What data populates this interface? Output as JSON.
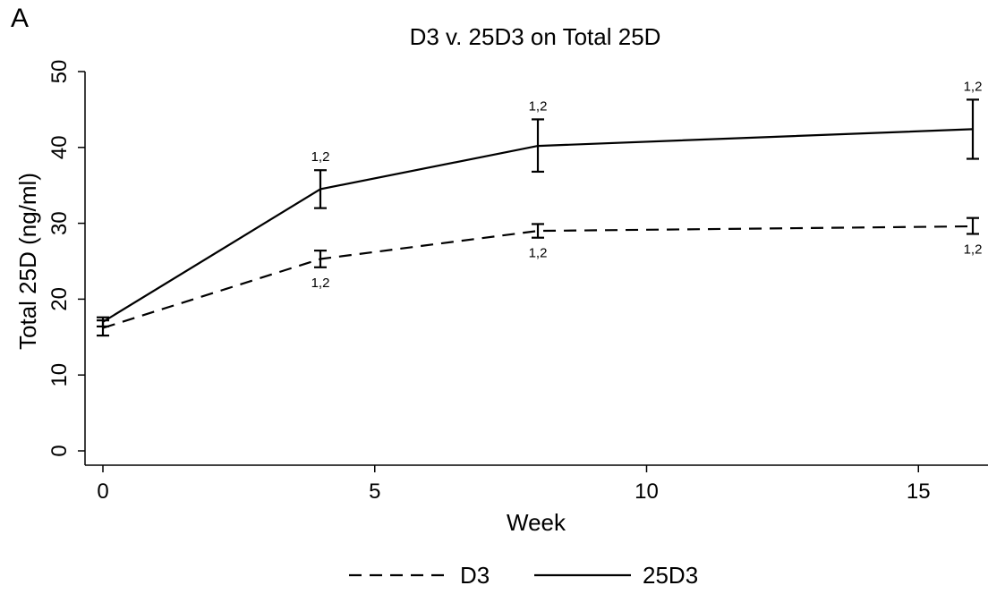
{
  "panel_letter": "A",
  "chart_data": {
    "type": "line",
    "title": "D3 v. 25D3 on Total 25D",
    "xlabel": "Week",
    "ylabel": "Total 25D (ng/ml)",
    "xlim": [
      0,
      16
    ],
    "ylim": [
      0,
      50
    ],
    "x_ticks": [
      0,
      5,
      10,
      15
    ],
    "y_ticks": [
      0,
      10,
      20,
      30,
      40,
      50
    ],
    "x_tick_labels": [
      "0",
      "5",
      "10",
      "15"
    ],
    "y_tick_labels": [
      "0",
      "10",
      "20",
      "30",
      "40",
      "50"
    ],
    "grid": false,
    "legend_position": "bottom",
    "series": [
      {
        "name": "D3",
        "style": "dashed",
        "points": [
          {
            "x": 0,
            "y": 16.2,
            "lo": 15.2,
            "hi": 17.2,
            "label": ""
          },
          {
            "x": 4,
            "y": 25.3,
            "lo": 24.2,
            "hi": 26.4,
            "label": "1,2",
            "label_pos": "below"
          },
          {
            "x": 8,
            "y": 29.0,
            "lo": 28.1,
            "hi": 29.9,
            "label": "1,2",
            "label_pos": "below"
          },
          {
            "x": 16,
            "y": 29.6,
            "lo": 28.6,
            "hi": 30.7,
            "label": "1,2",
            "label_pos": "below"
          }
        ]
      },
      {
        "name": "25D3",
        "style": "solid",
        "points": [
          {
            "x": 0,
            "y": 17.0,
            "lo": 16.4,
            "hi": 17.6,
            "label": ""
          },
          {
            "x": 4,
            "y": 34.5,
            "lo": 32.0,
            "hi": 37.0,
            "label": "1,2",
            "label_pos": "above"
          },
          {
            "x": 8,
            "y": 40.2,
            "lo": 36.8,
            "hi": 43.7,
            "label": "1,2",
            "label_pos": "above"
          },
          {
            "x": 16,
            "y": 42.4,
            "lo": 38.5,
            "hi": 46.3,
            "label": "1,2",
            "label_pos": "above"
          }
        ]
      }
    ]
  }
}
